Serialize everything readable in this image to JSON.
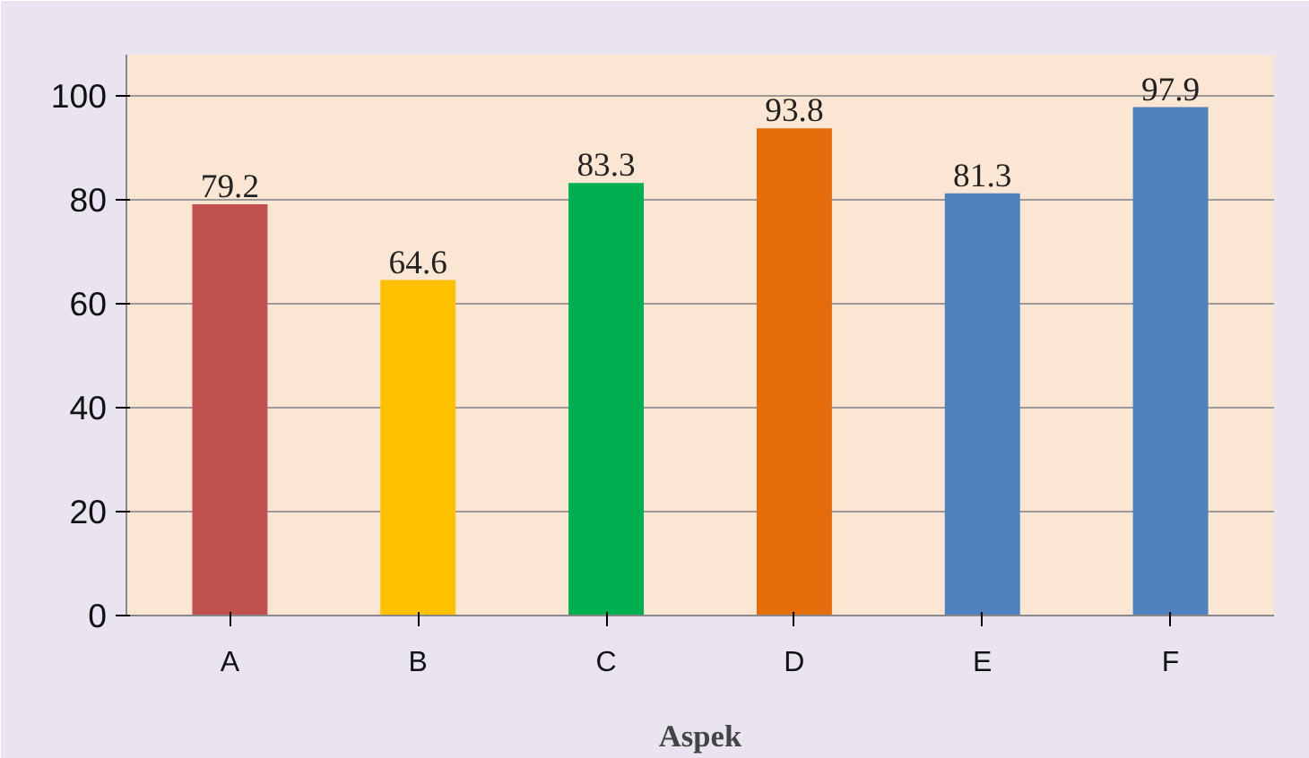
{
  "chart_data": {
    "type": "bar",
    "xlabel": "Aspek",
    "categories": [
      "A",
      "B",
      "C",
      "D",
      "E",
      "F"
    ],
    "values": [
      79.2,
      64.6,
      83.3,
      93.8,
      81.3,
      97.9
    ],
    "colors": [
      "#c0504d",
      "#ffc000",
      "#00b050",
      "#e46c0a",
      "#4f81bd",
      "#4f81bd"
    ],
    "ylim": [
      0,
      108
    ],
    "yticks": [
      0,
      20,
      40,
      60,
      80,
      100
    ],
    "grid": "y",
    "data_labels": true
  }
}
